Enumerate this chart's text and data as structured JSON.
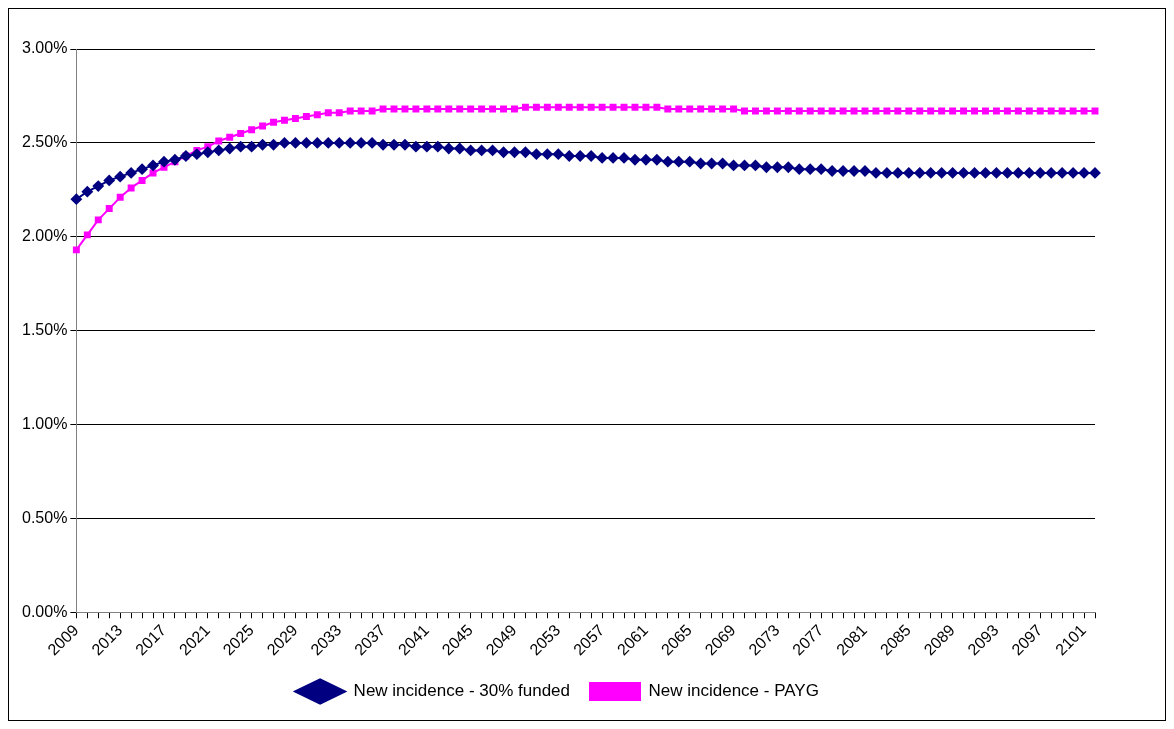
{
  "chart_data": {
    "type": "line",
    "categories": [
      "2009",
      null,
      null,
      null,
      "2013",
      null,
      null,
      null,
      "2017",
      null,
      null,
      null,
      "2021",
      null,
      null,
      null,
      "2025",
      null,
      null,
      null,
      "2029",
      null,
      null,
      null,
      "2033",
      null,
      null,
      null,
      "2037",
      null,
      null,
      null,
      "2041",
      null,
      null,
      null,
      "2045",
      null,
      null,
      null,
      "2049",
      null,
      null,
      null,
      "2053",
      null,
      null,
      null,
      "2057",
      null,
      null,
      null,
      "2061",
      null,
      null,
      null,
      "2065",
      null,
      null,
      null,
      "2069",
      null,
      null,
      null,
      "2073",
      null,
      null,
      null,
      "2077",
      null,
      null,
      null,
      "2081",
      null,
      null,
      null,
      "2085",
      null,
      null,
      null,
      "2089",
      null,
      null,
      null,
      "2093",
      null,
      null,
      null,
      "2097",
      null,
      null,
      null,
      "2101",
      null
    ],
    "series": [
      {
        "name": "New incidence - 30% funded",
        "color": "#000080",
        "marker": "diamond",
        "values": [
          2.2,
          2.24,
          2.27,
          2.3,
          2.32,
          2.34,
          2.36,
          2.38,
          2.4,
          2.41,
          2.43,
          2.44,
          2.45,
          2.46,
          2.47,
          2.48,
          2.48,
          2.49,
          2.49,
          2.5,
          2.5,
          2.5,
          2.5,
          2.5,
          2.5,
          2.5,
          2.5,
          2.5,
          2.49,
          2.49,
          2.49,
          2.48,
          2.48,
          2.48,
          2.47,
          2.47,
          2.46,
          2.46,
          2.46,
          2.45,
          2.45,
          2.45,
          2.44,
          2.44,
          2.44,
          2.43,
          2.43,
          2.43,
          2.42,
          2.42,
          2.42,
          2.41,
          2.41,
          2.41,
          2.4,
          2.4,
          2.4,
          2.39,
          2.39,
          2.39,
          2.38,
          2.38,
          2.38,
          2.37,
          2.37,
          2.37,
          2.36,
          2.36,
          2.36,
          2.35,
          2.35,
          2.35,
          2.35,
          2.34,
          2.34,
          2.34,
          2.34,
          2.34,
          2.34,
          2.34,
          2.34,
          2.34,
          2.34,
          2.34,
          2.34,
          2.34,
          2.34,
          2.34,
          2.34,
          2.34,
          2.34,
          2.34,
          2.34,
          2.34
        ]
      },
      {
        "name": "New incidence - PAYG",
        "color": "#ff00ff",
        "marker": "square",
        "values": [
          1.93,
          2.01,
          2.09,
          2.15,
          2.21,
          2.26,
          2.3,
          2.34,
          2.37,
          2.4,
          2.43,
          2.46,
          2.48,
          2.51,
          2.53,
          2.55,
          2.57,
          2.59,
          2.61,
          2.62,
          2.63,
          2.64,
          2.65,
          2.66,
          2.66,
          2.67,
          2.67,
          2.67,
          2.68,
          2.68,
          2.68,
          2.68,
          2.68,
          2.68,
          2.68,
          2.68,
          2.68,
          2.68,
          2.68,
          2.68,
          2.68,
          2.69,
          2.69,
          2.69,
          2.69,
          2.69,
          2.69,
          2.69,
          2.69,
          2.69,
          2.69,
          2.69,
          2.69,
          2.69,
          2.68,
          2.68,
          2.68,
          2.68,
          2.68,
          2.68,
          2.68,
          2.67,
          2.67,
          2.67,
          2.67,
          2.67,
          2.67,
          2.67,
          2.67,
          2.67,
          2.67,
          2.67,
          2.67,
          2.67,
          2.67,
          2.67,
          2.67,
          2.67,
          2.67,
          2.67,
          2.67,
          2.67,
          2.67,
          2.67,
          2.67,
          2.67,
          2.67,
          2.67,
          2.67,
          2.67,
          2.67,
          2.67,
          2.67,
          2.67
        ]
      }
    ],
    "ylim": [
      0,
      3
    ],
    "yticks": [
      {
        "value": 0,
        "label": "0.00%"
      },
      {
        "value": 0.5,
        "label": "0.50%"
      },
      {
        "value": 1,
        "label": "1.00%"
      },
      {
        "value": 1.5,
        "label": "1.50%"
      },
      {
        "value": 2,
        "label": "2.00%"
      },
      {
        "value": 2.5,
        "label": "2.50%"
      },
      {
        "value": 3,
        "label": "3.00%"
      }
    ],
    "grid": "y",
    "legend": "bottom",
    "line_style": "solid"
  }
}
